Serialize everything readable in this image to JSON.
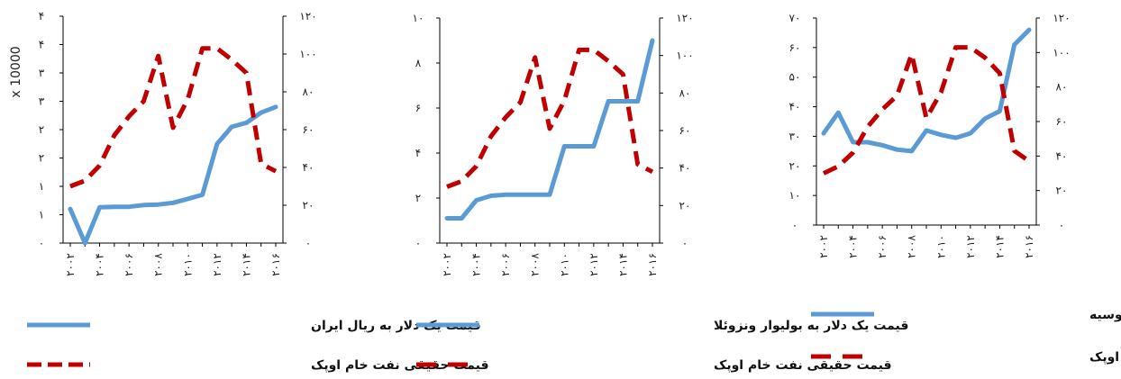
{
  "colors": {
    "exchange_rate": "#5b9bd5",
    "oil_price": "#c00000",
    "axis": "#000000"
  },
  "chart_data": [
    {
      "type": "line",
      "title": "",
      "x_ticks": [
        "۲۰۰۲",
        "۲۰۰۴",
        "۲۰۰۶",
        "۲۰۰۸",
        "۲۰۱۰",
        "۲۰۱۲",
        "۲۰۱۴",
        "۲۰۱۶"
      ],
      "left_axis": {
        "ylim": [
          0,
          4
        ],
        "ticks": [
          0,
          0.5,
          1,
          1.5,
          2,
          2.5,
          3,
          3.5,
          4
        ],
        "tick_labels": [
          "۰",
          "۱",
          "۱",
          "۲",
          "۲",
          "۳",
          "۳",
          "۴",
          "۴"
        ],
        "scale_label": "x 10000"
      },
      "right_axis": {
        "ylim": [
          0,
          120
        ],
        "ticks": [
          0,
          20,
          40,
          60,
          80,
          100,
          120
        ],
        "tick_labels": [
          "۰",
          "۲۰",
          "۴۰",
          "۶۰",
          "۸۰",
          "۱۰۰",
          "۱۲۰"
        ]
      },
      "series": [
        {
          "name": "قیمت یک دلار به ریال ایران",
          "axis": "left",
          "style": "solid",
          "x": [
            2002,
            2003,
            2004,
            2005,
            2006,
            2007,
            2008,
            2009,
            2010,
            2011,
            2012,
            2013,
            2014,
            2015,
            2016
          ],
          "values": [
            0.6,
            0.0,
            0.63,
            0.64,
            0.64,
            0.67,
            0.68,
            0.71,
            0.78,
            0.85,
            1.75,
            2.05,
            2.12,
            2.3,
            2.4
          ]
        },
        {
          "name": "قیمت حقیقی نفت خام اوپک",
          "axis": "right",
          "style": "dashed",
          "x": [
            2002,
            2003,
            2004,
            2005,
            2006,
            2007,
            2008,
            2009,
            2010,
            2011,
            2012,
            2013,
            2014,
            2015,
            2016
          ],
          "values": [
            30,
            33,
            41,
            57,
            67,
            75,
            99,
            61,
            76,
            103,
            103,
            97,
            90,
            42,
            38
          ]
        }
      ]
    },
    {
      "type": "line",
      "title": "",
      "x_ticks": [
        "۲۰۰۲",
        "۲۰۰۴",
        "۲۰۰۶",
        "۲۰۰۸",
        "۲۰۱۰",
        "۲۰۱۲",
        "۲۰۱۴",
        "۲۰۱۶"
      ],
      "left_axis": {
        "ylim": [
          0,
          10
        ],
        "ticks": [
          0,
          2,
          4,
          6,
          8,
          10
        ],
        "tick_labels": [
          "۰",
          "۲",
          "۴",
          "۶",
          "۸",
          "۱۰"
        ],
        "scale_label": ""
      },
      "right_axis": {
        "ylim": [
          0,
          120
        ],
        "ticks": [
          0,
          20,
          40,
          60,
          80,
          100,
          120
        ],
        "tick_labels": [
          "۰",
          "۲۰",
          "۴۰",
          "۶۰",
          "۸۰",
          "۱۰۰",
          "۱۲۰"
        ]
      },
      "series": [
        {
          "name": "قیمت یک دلار به بولیوار ونزوئلا",
          "axis": "left",
          "style": "solid",
          "x": [
            2002,
            2003,
            2004,
            2005,
            2006,
            2007,
            2008,
            2009,
            2010,
            2011,
            2012,
            2013,
            2014,
            2015,
            2016
          ],
          "values": [
            1.1,
            1.1,
            1.9,
            2.1,
            2.15,
            2.15,
            2.15,
            2.15,
            4.3,
            4.3,
            4.3,
            6.3,
            6.3,
            6.3,
            9.0
          ]
        },
        {
          "name": "قیمت حقیقی نفت خام اوپک",
          "axis": "right",
          "style": "dashed",
          "x": [
            2002,
            2003,
            2004,
            2005,
            2006,
            2007,
            2008,
            2009,
            2010,
            2011,
            2012,
            2013,
            2014,
            2015,
            2016
          ],
          "values": [
            30,
            33,
            41,
            57,
            67,
            75,
            99,
            61,
            76,
            103,
            103,
            97,
            90,
            42,
            38
          ]
        }
      ]
    },
    {
      "type": "line",
      "title": "",
      "x_ticks": [
        "۲۰۰۲",
        "۲۰۰۴",
        "۲۰۰۶",
        "۲۰۰۸",
        "۲۰۱۰",
        "۲۰۱۲",
        "۲۰۱۴",
        "۲۰۱۶"
      ],
      "left_axis": {
        "ylim": [
          0,
          70
        ],
        "ticks": [
          0,
          10,
          20,
          30,
          40,
          50,
          60,
          70
        ],
        "tick_labels": [
          "۰",
          "۱۰",
          "۲۰",
          "۳۰",
          "۴۰",
          "۵۰",
          "۶۰",
          "۷۰"
        ],
        "scale_label": ""
      },
      "right_axis": {
        "ylim": [
          0,
          120
        ],
        "ticks": [
          0,
          20,
          40,
          60,
          80,
          100,
          120
        ],
        "tick_labels": [
          "۰",
          "۲۰",
          "۴۰",
          "۶۰",
          "۸۰",
          "۱۰۰",
          "۱۲۰"
        ]
      },
      "series": [
        {
          "name": "قیمت یک دلار به روبل روسیه",
          "axis": "left",
          "style": "solid",
          "x": [
            2002,
            2003,
            2004,
            2005,
            2006,
            2007,
            2008,
            2009,
            2010,
            2011,
            2012,
            2013,
            2014,
            2015,
            2016
          ],
          "values": [
            31,
            38,
            28,
            28,
            27,
            25.5,
            25,
            32,
            30.5,
            29.5,
            31,
            36,
            38.5,
            61,
            66
          ]
        },
        {
          "name": "قیمت حقیقی نفت خام اوپک",
          "axis": "right",
          "style": "dashed",
          "x": [
            2002,
            2003,
            2004,
            2005,
            2006,
            2007,
            2008,
            2009,
            2010,
            2011,
            2012,
            2013,
            2014,
            2015,
            2016
          ],
          "values": [
            30,
            34,
            42,
            57,
            67,
            75,
            99,
            62,
            77,
            103,
            103,
            97,
            88,
            43,
            37
          ]
        }
      ]
    }
  ]
}
